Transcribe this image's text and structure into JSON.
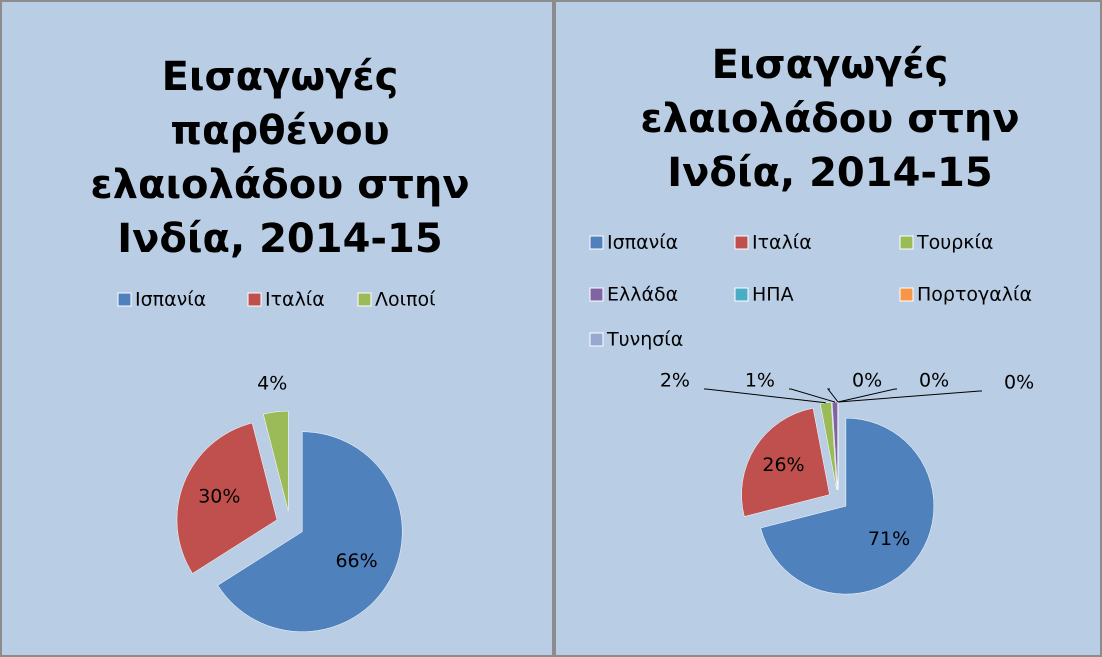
{
  "chart_data": [
    {
      "type": "pie",
      "title": "Εισαγωγές παρθένου ελαιολάδου στην Ινδία, 2014-15",
      "categories": [
        "Ισπανία",
        "Ιταλία",
        "Λοιποί"
      ],
      "values": [
        66,
        30,
        4
      ],
      "value_labels": [
        "66%",
        "30%",
        "4%"
      ],
      "colors": [
        "#4f81bd",
        "#c0504d",
        "#9bbb59"
      ],
      "legend": "top"
    },
    {
      "type": "pie",
      "title": "Εισαγωγές ελαιολάδου στην Ινδία, 2014-15",
      "categories": [
        "Ισπανία",
        "Ιταλία",
        "Τουρκία",
        "Ελλάδα",
        "ΗΠΑ",
        "Πορτογαλία",
        "Τυνησία"
      ],
      "values": [
        71,
        26,
        2,
        1,
        0,
        0,
        0
      ],
      "value_labels": [
        "71%",
        "26%",
        "2%",
        "1%",
        "0%",
        "0%",
        "0%"
      ],
      "colors": [
        "#4f81bd",
        "#c0504d",
        "#9bbb59",
        "#8064a2",
        "#4bacc6",
        "#f79646",
        "#95a9d1"
      ],
      "legend": "top"
    }
  ]
}
